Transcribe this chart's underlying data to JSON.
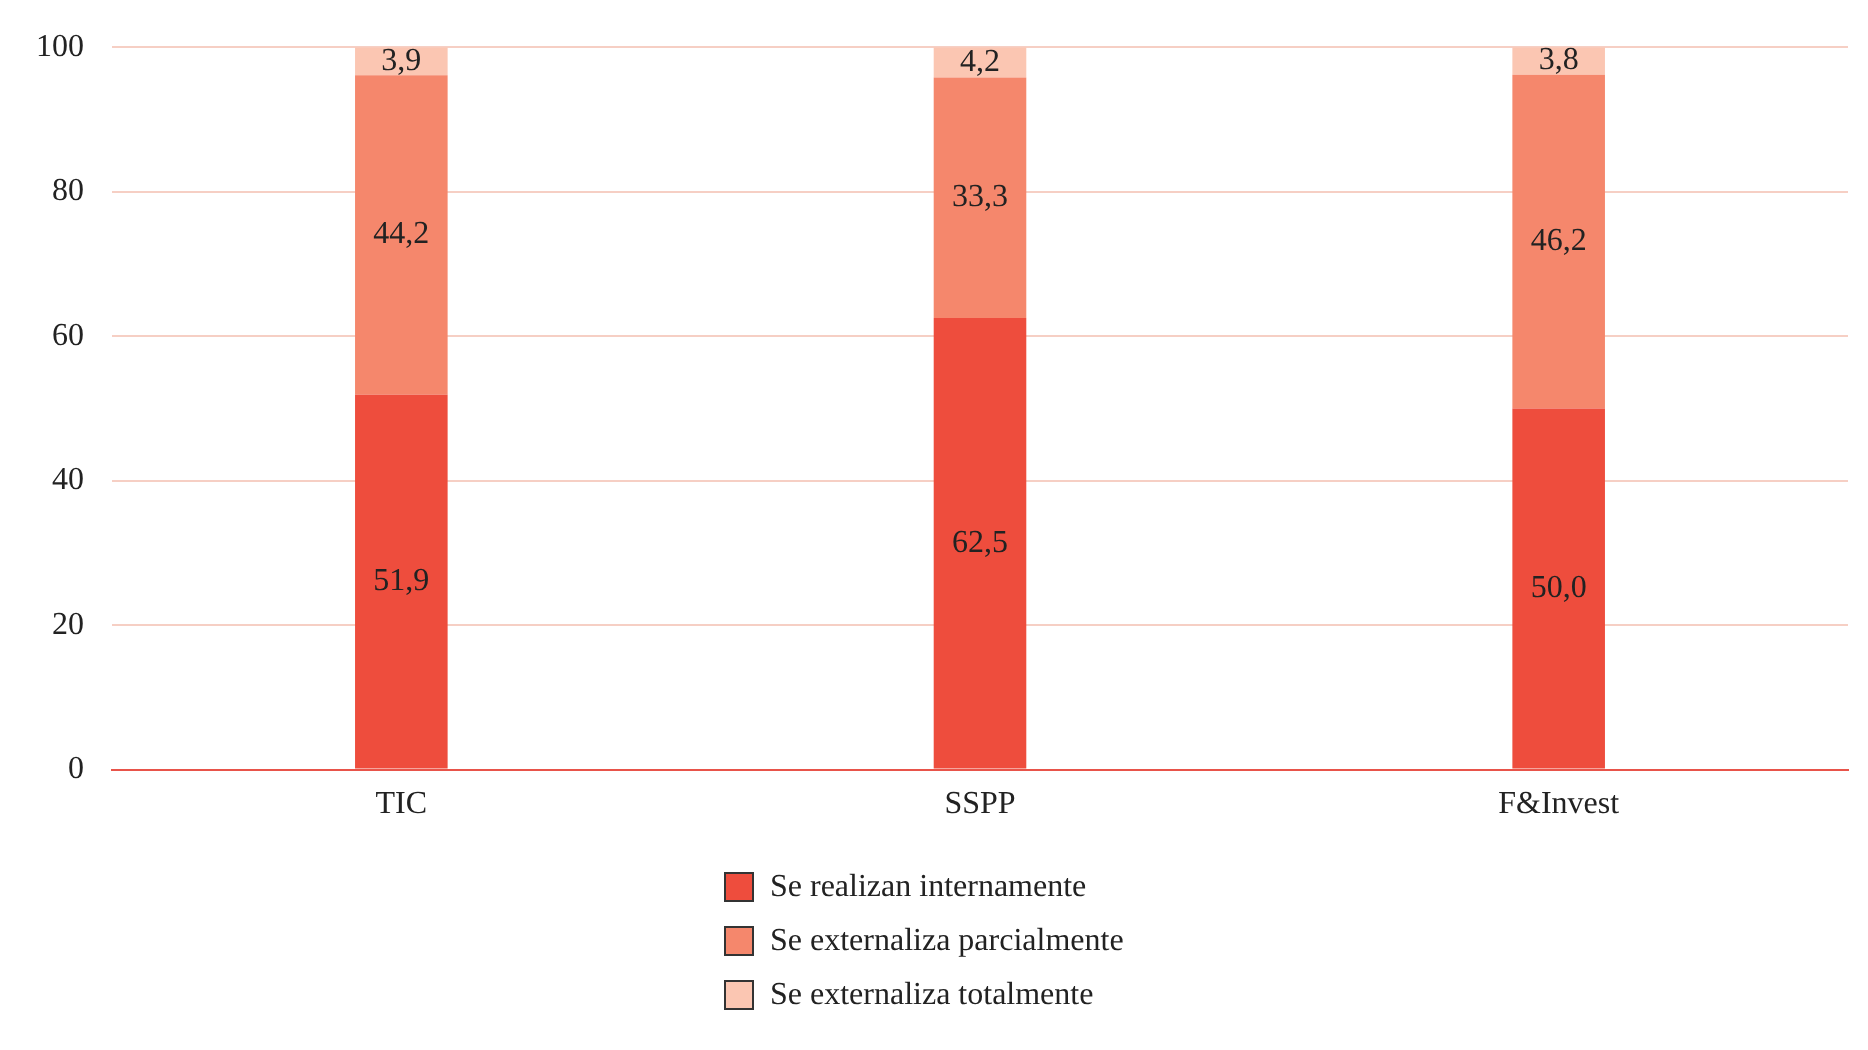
{
  "chart_data": {
    "type": "bar",
    "stacked": true,
    "categories": [
      "TIC",
      "SSPP",
      "F&Invest"
    ],
    "series": [
      {
        "name": "Se realizan internamente",
        "color": "#ee4d3d",
        "values": [
          51.9,
          62.5,
          50.0
        ],
        "value_labels": [
          "51,9",
          "62,5",
          "50,0"
        ]
      },
      {
        "name": "Se externaliza parcialmente",
        "color": "#f5876c",
        "values": [
          44.2,
          33.3,
          46.2
        ],
        "value_labels": [
          "44,2",
          "33,3",
          "46,2"
        ]
      },
      {
        "name": "Se externaliza totalmente",
        "color": "#fbc6b2",
        "values": [
          3.9,
          4.2,
          3.8
        ],
        "value_labels": [
          "3,9",
          "4,2",
          "3,8"
        ]
      }
    ],
    "ylim": [
      0,
      100
    ],
    "yticks": [
      0,
      20,
      40,
      60,
      80,
      100
    ],
    "grid": "y",
    "legend": "bottom"
  }
}
